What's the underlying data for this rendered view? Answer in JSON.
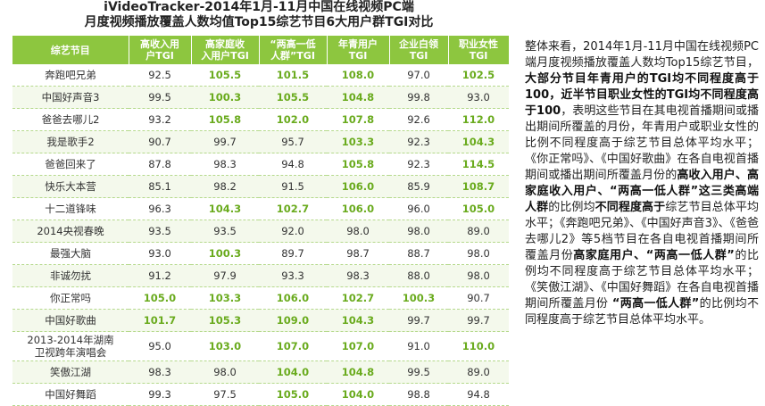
{
  "title_line1": "iVideoTracker-2014年1月-11月中国在线视频PC端",
  "title_line2": "月度视频播放覆盖人数均值Top15综艺节目6大用户群TGI对比",
  "headers": [
    "综艺节目",
    "高收入用户TGI",
    "高家庭收入用户TGI",
    "“两高一低人群”TGI",
    "年青用户TGI",
    "企业白领TGI",
    "职业女性TGI"
  ],
  "headers_lines": [
    [
      "综艺节目",
      ""
    ],
    [
      "高收入用",
      "户TGI"
    ],
    [
      "高家庭收",
      "入用户TGI"
    ],
    [
      "“两高一低",
      "人群”TGI"
    ],
    [
      "年青用户",
      "TGI"
    ],
    [
      "企业白领",
      "TGI"
    ],
    [
      "职业女性",
      "TGI"
    ]
  ],
  "rows": [
    {
      "name": "奔跑吧兄弟",
      "v": [
        "92.5",
        "105.5",
        "101.5",
        "108.0",
        "97.0",
        "102.5"
      ],
      "hl": [
        false,
        true,
        true,
        true,
        false,
        true
      ]
    },
    {
      "name": "中国好声音3",
      "v": [
        "99.5",
        "100.3",
        "105.5",
        "104.8",
        "99.8",
        "93.0"
      ],
      "hl": [
        false,
        true,
        true,
        true,
        false,
        false
      ]
    },
    {
      "name": "爸爸去哪儿2",
      "v": [
        "93.2",
        "105.8",
        "102.0",
        "107.8",
        "92.6",
        "112.0"
      ],
      "hl": [
        false,
        true,
        true,
        true,
        false,
        true
      ]
    },
    {
      "name": "我是歌手2",
      "v": [
        "90.7",
        "99.7",
        "95.7",
        "103.3",
        "92.3",
        "104.3"
      ],
      "hl": [
        false,
        false,
        false,
        true,
        false,
        true
      ]
    },
    {
      "name": "爸爸回来了",
      "v": [
        "87.8",
        "98.3",
        "94.8",
        "105.8",
        "92.3",
        "114.5"
      ],
      "hl": [
        false,
        false,
        false,
        true,
        false,
        true
      ]
    },
    {
      "name": "快乐大本营",
      "v": [
        "85.1",
        "98.2",
        "91.5",
        "106.0",
        "85.9",
        "108.7"
      ],
      "hl": [
        false,
        false,
        false,
        true,
        false,
        true
      ]
    },
    {
      "name": "十二道锋味",
      "v": [
        "96.3",
        "104.3",
        "102.7",
        "106.0",
        "96.0",
        "105.0"
      ],
      "hl": [
        false,
        true,
        true,
        true,
        false,
        true
      ]
    },
    {
      "name": "2014央视春晚",
      "v": [
        "93.5",
        "93.5",
        "92.0",
        "98.0",
        "98.0",
        "89.0"
      ],
      "hl": [
        false,
        false,
        false,
        false,
        false,
        false
      ]
    },
    {
      "name": "最强大脑",
      "v": [
        "93.0",
        "100.3",
        "89.7",
        "98.7",
        "88.7",
        "98.0"
      ],
      "hl": [
        false,
        true,
        false,
        false,
        false,
        false
      ]
    },
    {
      "name": "非诚勿扰",
      "v": [
        "91.2",
        "97.9",
        "93.3",
        "98.3",
        "88.0",
        "98.0"
      ],
      "hl": [
        false,
        false,
        false,
        false,
        false,
        false
      ]
    },
    {
      "name": "你正常吗",
      "v": [
        "105.0",
        "103.3",
        "106.0",
        "102.7",
        "100.3",
        "90.7"
      ],
      "hl": [
        true,
        true,
        true,
        true,
        true,
        false
      ]
    },
    {
      "name": "中国好歌曲",
      "v": [
        "101.7",
        "105.3",
        "109.0",
        "104.3",
        "99.7",
        "99.7"
      ],
      "hl": [
        true,
        true,
        true,
        true,
        false,
        false
      ]
    },
    {
      "name": "2013-2014年湖南卫视跨年演唱会",
      "name_lines": [
        "2013-2014年湖南",
        "卫视跨年演唱会"
      ],
      "v": [
        "95.0",
        "103.0",
        "107.0",
        "107.0",
        "91.0",
        "110.0"
      ],
      "hl": [
        false,
        true,
        true,
        true,
        false,
        true
      ]
    },
    {
      "name": "笑傲江湖",
      "v": [
        "98.3",
        "98.0",
        "104.0",
        "104.8",
        "99.5",
        "89.0"
      ],
      "hl": [
        false,
        false,
        true,
        true,
        false,
        false
      ]
    },
    {
      "name": "中国好舞蹈",
      "v": [
        "99.3",
        "97.5",
        "105.0",
        "104.0",
        "98.8",
        "94.8"
      ],
      "hl": [
        false,
        false,
        true,
        true,
        false,
        false
      ]
    }
  ],
  "paragraph": [
    {
      "t": "整体来看，2014年1月-11月中国在线视频PC端月度视频播放覆盖人数均Top15综艺节目，",
      "b": false
    },
    {
      "t": "大部分节目年青用户的TGI均不同程度高于100，近半节目职业女性的TGI均不同程度高于100",
      "b": true
    },
    {
      "t": "，表明这些节目在其电视首播期间或播出期间所覆盖的月份，年青用户或职业女性的比例不同程度高于综艺节目总体平均水平；《你正常吗》、《中国好歌曲》在各自电视首播期间或播出期间所覆盖月份的",
      "b": false
    },
    {
      "t": "高收入用户、高家庭收入用户、“两高一低人群”这三类高端人群",
      "b": true
    },
    {
      "t": "的比例均",
      "b": false
    },
    {
      "t": "不同程度高于",
      "b": true
    },
    {
      "t": "综艺节目总体平均水平；《奔跑吧兄弟》、《中国好声音3》、《爸爸去哪儿2》等5档节目在各自电视首播期间所覆盖月份",
      "b": false
    },
    {
      "t": "高家庭用户、“两高一低人群”",
      "b": true
    },
    {
      "t": "的比例均不同程度高于综艺节目总体平均水平；《笑傲江湖》、《中国好舞蹈》在各自电视首播期间所覆盖月份 ",
      "b": false
    },
    {
      "t": "“两高一低人群”",
      "b": true
    },
    {
      "t": "的比例均不同程度高于综艺节目总体平均水平。",
      "b": false
    }
  ]
}
